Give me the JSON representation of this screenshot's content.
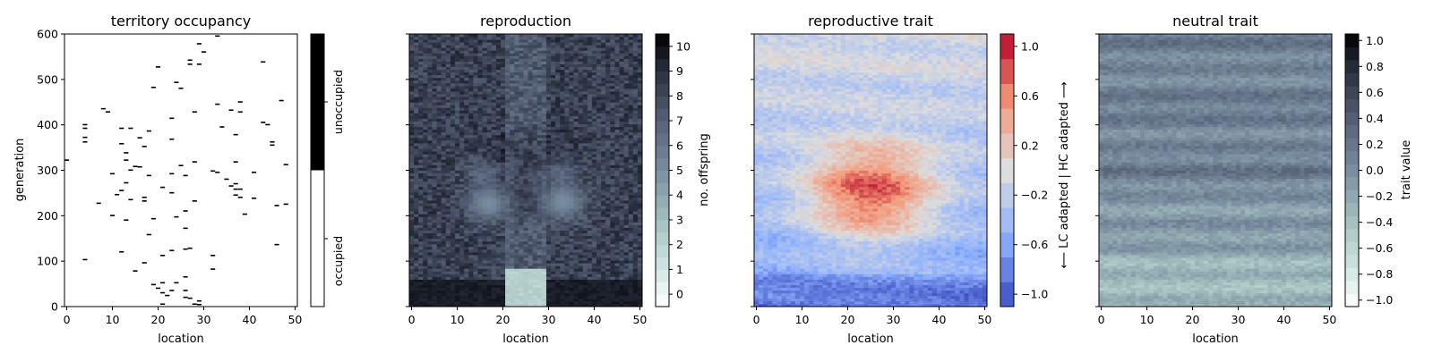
{
  "chart_data": [
    {
      "type": "heatmap",
      "title": "territory occupancy",
      "xlabel": "location",
      "ylabel": "generation",
      "x_ticks": [
        "0",
        "10",
        "20",
        "30",
        "40",
        "50"
      ],
      "y_ticks": [
        "0",
        "100",
        "200",
        "300",
        "400",
        "500",
        "600"
      ],
      "xlim": [
        0,
        51
      ],
      "ylim": [
        0,
        600
      ],
      "colorbar": {
        "labels": [
          "occupied",
          "unoccupied"
        ],
        "colors": {
          "occupied": "#ffffff",
          "unoccupied": "#000000"
        }
      },
      "unoccupied_cells": [
        {
          "x": 0,
          "y": 322
        },
        {
          "x": 4,
          "y": 400
        },
        {
          "x": 4,
          "y": 392
        },
        {
          "x": 4,
          "y": 372
        },
        {
          "x": 4,
          "y": 362
        },
        {
          "x": 4,
          "y": 103
        },
        {
          "x": 7,
          "y": 227
        },
        {
          "x": 8,
          "y": 435
        },
        {
          "x": 9,
          "y": 428
        },
        {
          "x": 10,
          "y": 292
        },
        {
          "x": 10,
          "y": 200
        },
        {
          "x": 11,
          "y": 246
        },
        {
          "x": 12,
          "y": 392
        },
        {
          "x": 12,
          "y": 358
        },
        {
          "x": 12,
          "y": 255
        },
        {
          "x": 12,
          "y": 120
        },
        {
          "x": 13,
          "y": 338
        },
        {
          "x": 13,
          "y": 322
        },
        {
          "x": 13,
          "y": 272
        },
        {
          "x": 13,
          "y": 190
        },
        {
          "x": 14,
          "y": 392
        },
        {
          "x": 14,
          "y": 300
        },
        {
          "x": 14,
          "y": 235
        },
        {
          "x": 15,
          "y": 308
        },
        {
          "x": 15,
          "y": 78
        },
        {
          "x": 16,
          "y": 371
        },
        {
          "x": 16,
          "y": 307
        },
        {
          "x": 17,
          "y": 352
        },
        {
          "x": 17,
          "y": 240
        },
        {
          "x": 17,
          "y": 96
        },
        {
          "x": 17,
          "y": 232
        },
        {
          "x": 18,
          "y": 386
        },
        {
          "x": 18,
          "y": 288
        },
        {
          "x": 18,
          "y": 158
        },
        {
          "x": 19,
          "y": 482
        },
        {
          "x": 19,
          "y": 193
        },
        {
          "x": 19,
          "y": 48
        },
        {
          "x": 20,
          "y": 527
        },
        {
          "x": 20,
          "y": 40
        },
        {
          "x": 21,
          "y": 262
        },
        {
          "x": 21,
          "y": 112
        },
        {
          "x": 21,
          "y": 52
        },
        {
          "x": 21,
          "y": 30
        },
        {
          "x": 21,
          "y": 5
        },
        {
          "x": 22,
          "y": 24
        },
        {
          "x": 23,
          "y": 414
        },
        {
          "x": 23,
          "y": 368
        },
        {
          "x": 23,
          "y": 292
        },
        {
          "x": 23,
          "y": 250
        },
        {
          "x": 23,
          "y": 123
        },
        {
          "x": 23,
          "y": 35
        },
        {
          "x": 24,
          "y": 493
        },
        {
          "x": 24,
          "y": 197
        },
        {
          "x": 24,
          "y": 52
        },
        {
          "x": 25,
          "y": 480
        },
        {
          "x": 25,
          "y": 310
        },
        {
          "x": 26,
          "y": 288
        },
        {
          "x": 26,
          "y": 210
        },
        {
          "x": 26,
          "y": 172
        },
        {
          "x": 26,
          "y": 126
        },
        {
          "x": 26,
          "y": 65
        },
        {
          "x": 26,
          "y": 35
        },
        {
          "x": 26,
          "y": 20
        },
        {
          "x": 27,
          "y": 542
        },
        {
          "x": 27,
          "y": 533
        },
        {
          "x": 27,
          "y": 128
        },
        {
          "x": 27,
          "y": 18
        },
        {
          "x": 28,
          "y": 428
        },
        {
          "x": 28,
          "y": 318
        },
        {
          "x": 28,
          "y": 232
        },
        {
          "x": 28,
          "y": 5
        },
        {
          "x": 29,
          "y": 578
        },
        {
          "x": 29,
          "y": 533
        },
        {
          "x": 29,
          "y": 12
        },
        {
          "x": 29,
          "y": 4
        },
        {
          "x": 30,
          "y": 560
        },
        {
          "x": 32,
          "y": 298
        },
        {
          "x": 32,
          "y": 112
        },
        {
          "x": 32,
          "y": 82
        },
        {
          "x": 33,
          "y": 595
        },
        {
          "x": 33,
          "y": 445
        },
        {
          "x": 33,
          "y": 295
        },
        {
          "x": 34,
          "y": 395
        },
        {
          "x": 35,
          "y": 280
        },
        {
          "x": 36,
          "y": 432
        },
        {
          "x": 36,
          "y": 265
        },
        {
          "x": 37,
          "y": 378
        },
        {
          "x": 37,
          "y": 318
        },
        {
          "x": 37,
          "y": 270
        },
        {
          "x": 37,
          "y": 258
        },
        {
          "x": 37,
          "y": 245
        },
        {
          "x": 38,
          "y": 450
        },
        {
          "x": 38,
          "y": 428
        },
        {
          "x": 38,
          "y": 258
        },
        {
          "x": 38,
          "y": 240
        },
        {
          "x": 39,
          "y": 203
        },
        {
          "x": 41,
          "y": 295
        },
        {
          "x": 41,
          "y": 238
        },
        {
          "x": 43,
          "y": 538
        },
        {
          "x": 43,
          "y": 405
        },
        {
          "x": 44,
          "y": 400
        },
        {
          "x": 45,
          "y": 355
        },
        {
          "x": 45,
          "y": 362
        },
        {
          "x": 46,
          "y": 222
        },
        {
          "x": 46,
          "y": 136
        },
        {
          "x": 47,
          "y": 453
        },
        {
          "x": 48,
          "y": 312
        },
        {
          "x": 48,
          "y": 225
        }
      ]
    },
    {
      "type": "heatmap",
      "title": "reproduction",
      "xlabel": "location",
      "x_ticks": [
        "0",
        "10",
        "20",
        "30",
        "40",
        "50"
      ],
      "xlim": [
        0,
        51
      ],
      "ylim": [
        0,
        600
      ],
      "colorbar": {
        "label": "no. offspring",
        "ticks": [
          "0",
          "1",
          "2",
          "3",
          "4",
          "5",
          "6",
          "7",
          "8",
          "9",
          "10"
        ],
        "range": [
          0,
          10
        ],
        "colormap": "bone_r"
      },
      "pattern": {
        "location_band": [
          21,
          30
        ],
        "low_offspring_in_band_below_generation": 85,
        "band_mean_offspring_generation_0": 2.2,
        "outside_band_mean_offspring_generation_0": 9.6,
        "hotspots_mean_offspring_generation_225": 5.0
      }
    },
    {
      "type": "heatmap",
      "title": "reproductive trait",
      "xlabel": "location",
      "x_ticks": [
        "0",
        "10",
        "20",
        "30",
        "40",
        "50"
      ],
      "xlim": [
        0,
        51
      ],
      "ylim": [
        0,
        600
      ],
      "colorbar": {
        "label": "⟵ LC adapted  |  HC adapted ⟶",
        "ticks": [
          "1.0",
          "0.6",
          "0.2",
          "−0.2",
          "−0.6",
          "−1.0"
        ],
        "range": [
          -1.1,
          1.1
        ],
        "colormap": "coolwarm"
      },
      "pattern": {
        "mean_trait_generation_0": -0.95,
        "mean_trait_generation_400": -0.35,
        "peak_location": 25,
        "peak_generation": 255,
        "peak_trait_value": 0.85
      }
    },
    {
      "type": "heatmap",
      "title": "neutral trait",
      "xlabel": "location",
      "x_ticks": [
        "0",
        "10",
        "20",
        "30",
        "40",
        "50"
      ],
      "xlim": [
        0,
        51
      ],
      "ylim": [
        0,
        600
      ],
      "colorbar": {
        "label": "trait value",
        "ticks": [
          "1.0",
          "0.8",
          "0.6",
          "0.4",
          "0.2",
          "0.0",
          "−0.2",
          "−0.4",
          "−0.6",
          "−0.8",
          "−1.0"
        ],
        "range": [
          -1.05,
          1.05
        ],
        "colormap": "bone_r"
      },
      "pattern": {
        "mean_trait_generation_0": -0.4,
        "mean_trait_generation_600": 0.1
      }
    }
  ]
}
